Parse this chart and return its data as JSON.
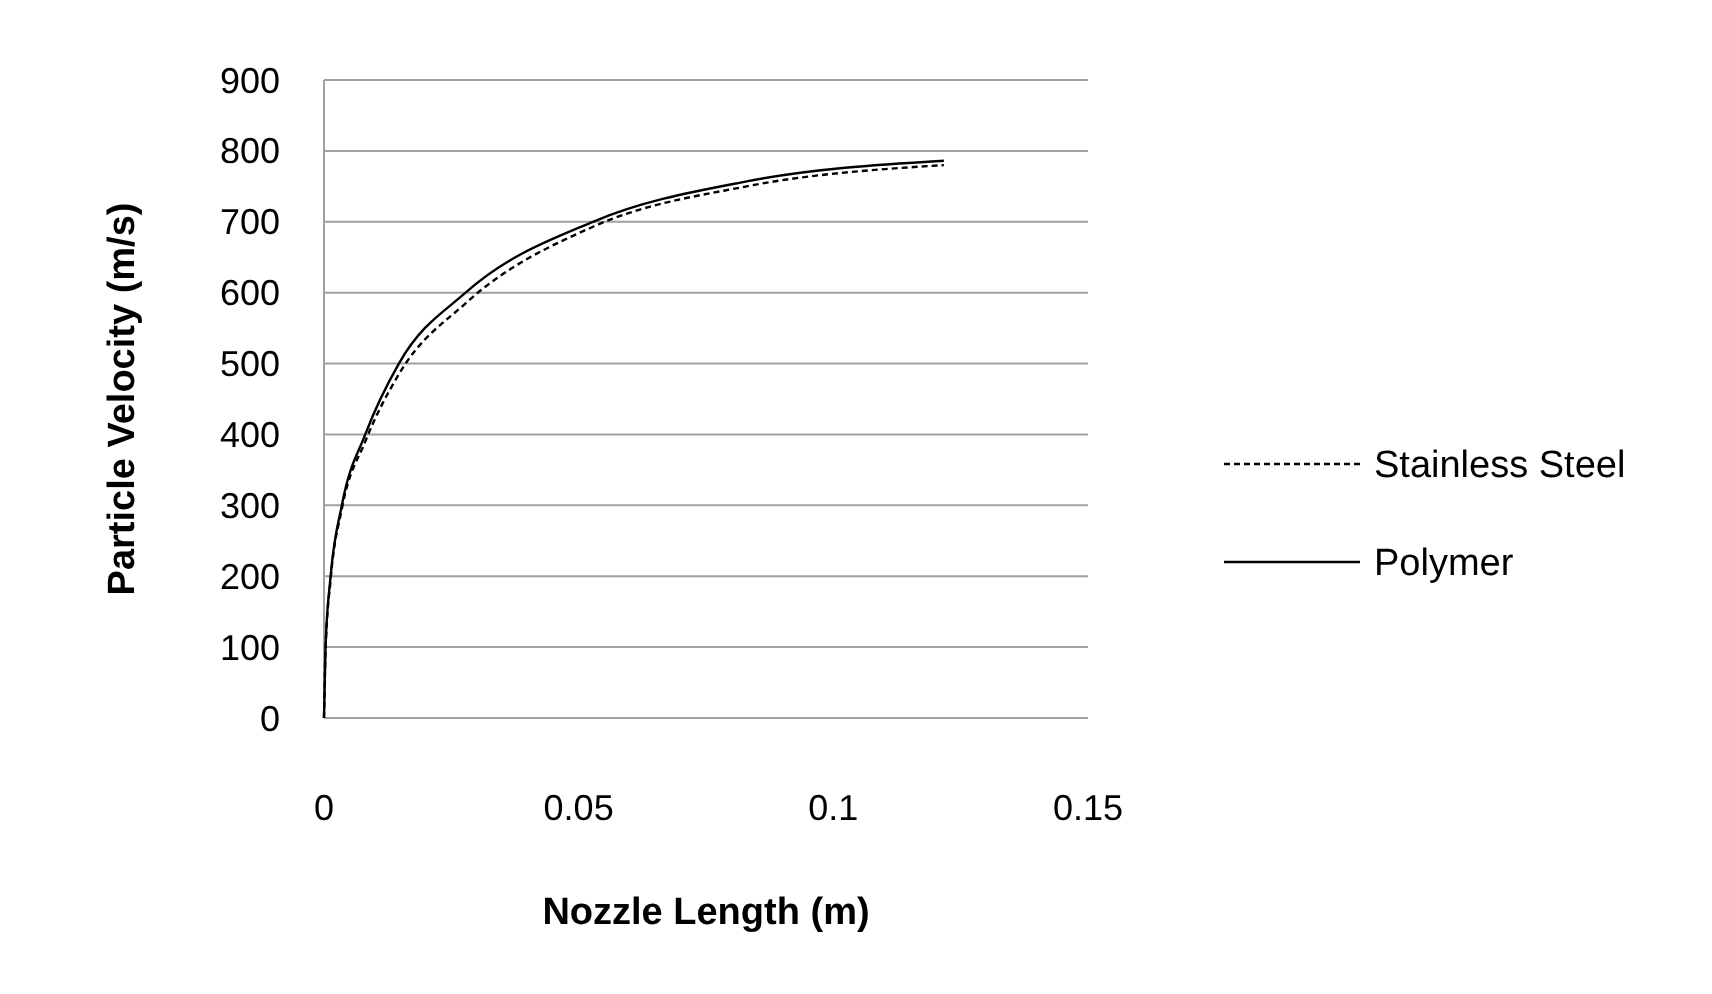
{
  "chart_data": {
    "type": "line",
    "xlabel": "Nozzle Length (m)",
    "ylabel": "Particle Velocity (m/s)",
    "xlim": [
      0,
      0.15
    ],
    "xticks": [
      0,
      0.05,
      0.1,
      0.15
    ],
    "ylim": [
      0,
      900
    ],
    "yticks": [
      0,
      100,
      200,
      300,
      400,
      500,
      600,
      700,
      800,
      900
    ],
    "grid": "y",
    "legend": "right",
    "series": [
      {
        "name": "Stainless Steel",
        "color": "#000000",
        "line_style": "dashed",
        "x": [
          0,
          0.0003,
          0.0013,
          0.0035,
          0.0081,
          0.0147,
          0.0278,
          0.0528,
          0.083,
          0.1217
        ],
        "values": [
          0,
          95,
          195,
          295,
          390,
          485,
          585,
          693,
          750,
          780
        ]
      },
      {
        "name": "Polymer",
        "color": "#000000",
        "line_style": "solid",
        "x": [
          0,
          0.0003,
          0.0013,
          0.0035,
          0.0081,
          0.0147,
          0.0278,
          0.0528,
          0.083,
          0.1217
        ],
        "values": [
          0,
          100,
          200,
          300,
          400,
          500,
          600,
          700,
          757,
          786
        ]
      }
    ]
  }
}
